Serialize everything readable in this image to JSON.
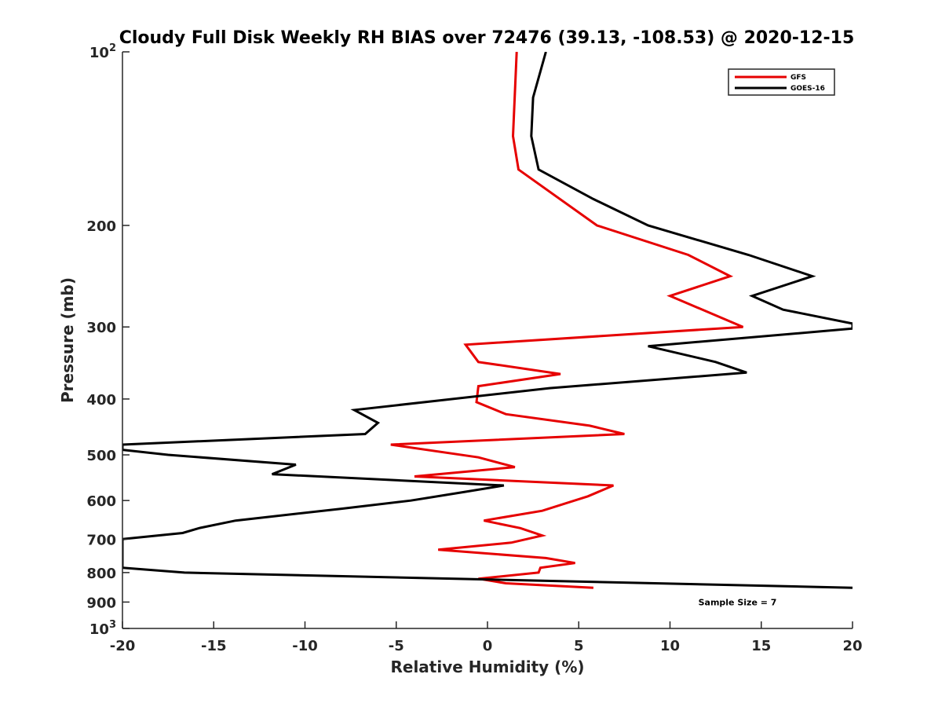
{
  "chart_data": {
    "type": "line",
    "title": "Cloudy Full Disk Weekly RH BIAS over 72476 (39.13, -108.53) @ 2020-12-15",
    "xlabel": "Relative Humidity (%)",
    "ylabel": "Pressure (mb)",
    "xlim": [
      -20,
      20
    ],
    "ylim": [
      100,
      1000
    ],
    "y_scale": "log",
    "y_reversed": true,
    "grid": false,
    "legend_position": "top-right",
    "x_ticks": [
      {
        "value": -20,
        "label": "-20"
      },
      {
        "value": -15,
        "label": "-15"
      },
      {
        "value": -10,
        "label": "-10"
      },
      {
        "value": -5,
        "label": "-5"
      },
      {
        "value": 0,
        "label": "0"
      },
      {
        "value": 5,
        "label": "5"
      },
      {
        "value": 10,
        "label": "10"
      },
      {
        "value": 15,
        "label": "15"
      },
      {
        "value": 20,
        "label": "20"
      }
    ],
    "y_ticks": [
      {
        "value": 100,
        "base": "10",
        "exp": "2"
      },
      {
        "value": 200,
        "label": "200"
      },
      {
        "value": 300,
        "label": "300"
      },
      {
        "value": 400,
        "label": "400"
      },
      {
        "value": 500,
        "label": "500"
      },
      {
        "value": 600,
        "label": "600"
      },
      {
        "value": 700,
        "label": "700"
      },
      {
        "value": 800,
        "label": "800"
      },
      {
        "value": 900,
        "label": "900"
      },
      {
        "value": 1000,
        "base": "10",
        "exp": "3"
      }
    ],
    "series": [
      {
        "name": "GFS",
        "color": "#e60000",
        "points": [
          [
            1.6,
            100
          ],
          [
            1.4,
            140
          ],
          [
            1.7,
            160
          ],
          [
            6.0,
            200
          ],
          [
            11.0,
            225
          ],
          [
            13.3,
            245
          ],
          [
            10.0,
            265
          ],
          [
            14.0,
            300
          ],
          [
            -1.2,
            322
          ],
          [
            -0.5,
            345
          ],
          [
            4.0,
            362
          ],
          [
            -0.5,
            380
          ],
          [
            -0.6,
            405
          ],
          [
            1.0,
            425
          ],
          [
            5.6,
            445
          ],
          [
            7.5,
            460
          ],
          [
            -5.3,
            480
          ],
          [
            -0.5,
            505
          ],
          [
            1.5,
            525
          ],
          [
            -4.0,
            545
          ],
          [
            6.9,
            565
          ],
          [
            5.5,
            590
          ],
          [
            3.0,
            625
          ],
          [
            -0.2,
            650
          ],
          [
            1.8,
            670
          ],
          [
            3.0,
            690
          ],
          [
            1.3,
            710
          ],
          [
            -2.7,
            730
          ],
          [
            3.2,
            755
          ],
          [
            4.8,
            770
          ],
          [
            2.9,
            785
          ],
          [
            2.8,
            800
          ],
          [
            -0.5,
            820
          ],
          [
            1.0,
            835
          ],
          [
            5.8,
            850
          ]
        ]
      },
      {
        "name": "GOES-16",
        "color": "#000000",
        "points": [
          [
            3.2,
            100
          ],
          [
            2.5,
            120
          ],
          [
            2.4,
            140
          ],
          [
            2.8,
            160
          ],
          [
            5.8,
            180
          ],
          [
            8.8,
            200
          ],
          [
            14.3,
            225
          ],
          [
            17.8,
            245
          ],
          [
            14.5,
            265
          ],
          [
            16.2,
            280
          ],
          [
            20,
            296
          ],
          [
            20,
            302
          ],
          [
            8.8,
            324
          ],
          [
            12.5,
            345
          ],
          [
            14.2,
            360
          ],
          [
            3.4,
            383
          ],
          [
            -7.3,
            418
          ],
          [
            -6.0,
            440
          ],
          [
            -6.7,
            460
          ],
          [
            -20,
            480
          ],
          [
            -20,
            490
          ],
          [
            -17.5,
            500
          ],
          [
            -10.5,
            520
          ],
          [
            -11.8,
            540
          ],
          [
            0.9,
            565
          ],
          [
            -1.3,
            580
          ],
          [
            -4.2,
            600
          ],
          [
            -8.0,
            620
          ],
          [
            -13.8,
            650
          ],
          [
            -15.8,
            670
          ],
          [
            -16.7,
            683
          ],
          [
            -20,
            700
          ],
          [
            -20,
            785
          ],
          [
            -16.6,
            800
          ],
          [
            20,
            850
          ]
        ]
      }
    ],
    "annotations": [
      {
        "text": "Sample Size = 7",
        "x": 13.7,
        "y": 900
      }
    ]
  }
}
